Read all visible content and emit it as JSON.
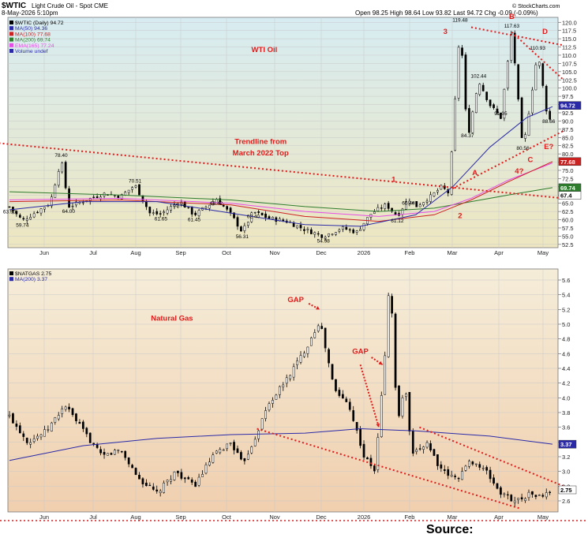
{
  "header": {
    "symbol": "$WTIC",
    "name": "Light Crude Oil - Spot",
    "exchange": "CME",
    "datetime": "8-May-2026 5:10pm",
    "ohlc": "Open 98.25  High 98.64  Low 93.82  Last 94.72  Chg -0.09 (-0.09%)",
    "credit": "© StockCharts.com"
  },
  "colors": {
    "oil_bg_top": "#d7ecf2",
    "oil_bg_bottom": "#ede6c0",
    "gas_bg_top": "#f5edd9",
    "gas_bg_bottom": "#f0cfae",
    "annotation": "#e01b1b",
    "ma50": "#2a2aa8",
    "ma100": "#cc2222",
    "ma200": "#2e7d2e",
    "ema165": "#e64de6"
  },
  "chart_data": [
    {
      "type": "line",
      "title": "WTI Oil",
      "legend": [
        "$WTIC (Daily) 94.72",
        "MA(50) 94.36",
        "MA(100) 77.68",
        "MA(200) 69.74",
        "EMA(165) 77.24",
        "Volume undef"
      ],
      "months": [
        "Jun",
        "Jul",
        "Aug",
        "Sep",
        "Oct",
        "Nov",
        "Dec",
        "2026",
        "Feb",
        "Mar",
        "Apr",
        "May"
      ],
      "ylim": [
        52.5,
        120
      ],
      "yticks": [
        "52.5",
        "55.0",
        "57.5",
        "60.0",
        "62.5",
        "65.0",
        "67.5",
        "70.0",
        "72.5",
        "75.0",
        "77.5",
        "80.0",
        "82.5",
        "85.0",
        "87.5",
        "90.0",
        "92.5",
        "95.0",
        "97.5",
        "100.0",
        "102.5",
        "105.0",
        "107.5",
        "110.0",
        "112.5",
        "115.0",
        "117.5",
        "120.0"
      ],
      "price_path": [
        {
          "t": 0,
          "v": 63.9
        },
        {
          "t": 0.35,
          "v": 59.74
        },
        {
          "t": 1.1,
          "v": 65
        },
        {
          "t": 1.4,
          "v": 78.4
        },
        {
          "t": 1.6,
          "v": 64
        },
        {
          "t": 2.2,
          "v": 66.5
        },
        {
          "t": 2.6,
          "v": 68
        },
        {
          "t": 3.0,
          "v": 67
        },
        {
          "t": 3.4,
          "v": 70.51
        },
        {
          "t": 3.8,
          "v": 62
        },
        {
          "t": 4.1,
          "v": 61.65
        },
        {
          "t": 4.6,
          "v": 65.76
        },
        {
          "t": 5.0,
          "v": 61.45
        },
        {
          "t": 5.4,
          "v": 64.5
        },
        {
          "t": 5.6,
          "v": 66.42
        },
        {
          "t": 6.0,
          "v": 61.5
        },
        {
          "t": 6.3,
          "v": 56.31
        },
        {
          "t": 6.6,
          "v": 62.4
        },
        {
          "t": 7.0,
          "v": 60.5
        },
        {
          "t": 7.5,
          "v": 59.5
        },
        {
          "t": 8.0,
          "v": 57
        },
        {
          "t": 8.5,
          "v": 54.98
        },
        {
          "t": 9.0,
          "v": 57.5
        },
        {
          "t": 9.4,
          "v": 56.2
        },
        {
          "t": 9.8,
          "v": 62
        },
        {
          "t": 10.2,
          "v": 64.5
        },
        {
          "t": 10.5,
          "v": 61.12
        },
        {
          "t": 10.8,
          "v": 66.48
        },
        {
          "t": 11.0,
          "v": 64
        },
        {
          "t": 11.4,
          "v": 67
        },
        {
          "t": 11.7,
          "v": 70
        },
        {
          "t": 11.9,
          "v": 68
        },
        {
          "t": 12.2,
          "v": 119.48
        },
        {
          "t": 12.4,
          "v": 84.37
        },
        {
          "t": 12.7,
          "v": 102.44
        },
        {
          "t": 13.0,
          "v": 95
        },
        {
          "t": 13.3,
          "v": 91.05
        },
        {
          "t": 13.6,
          "v": 117.63
        },
        {
          "t": 13.9,
          "v": 80.56
        },
        {
          "t": 14.3,
          "v": 110.93
        },
        {
          "t": 14.6,
          "v": 88.66
        },
        {
          "t": 14.7,
          "v": 94.72
        }
      ],
      "ma50_path": [
        {
          "t": 0,
          "v": 63
        },
        {
          "t": 2,
          "v": 65.5
        },
        {
          "t": 4,
          "v": 65.5
        },
        {
          "t": 6,
          "v": 62
        },
        {
          "t": 8,
          "v": 58.5
        },
        {
          "t": 9.5,
          "v": 58
        },
        {
          "t": 11,
          "v": 61.5
        },
        {
          "t": 12,
          "v": 70
        },
        {
          "t": 13,
          "v": 82
        },
        {
          "t": 14,
          "v": 91
        },
        {
          "t": 14.7,
          "v": 94.36
        }
      ],
      "ma100_path": [
        {
          "t": 0,
          "v": 65.5
        },
        {
          "t": 3,
          "v": 66
        },
        {
          "t": 6,
          "v": 64.5
        },
        {
          "t": 8,
          "v": 61
        },
        {
          "t": 10,
          "v": 59.5
        },
        {
          "t": 11.5,
          "v": 61.5
        },
        {
          "t": 12.5,
          "v": 66
        },
        {
          "t": 13.5,
          "v": 71.5
        },
        {
          "t": 14.7,
          "v": 77.68
        }
      ],
      "ema165_path": [
        {
          "t": 0,
          "v": 66
        },
        {
          "t": 3,
          "v": 66.5
        },
        {
          "t": 6,
          "v": 65
        },
        {
          "t": 8,
          "v": 62.5
        },
        {
          "t": 10,
          "v": 61
        },
        {
          "t": 11.5,
          "v": 62.5
        },
        {
          "t": 12.5,
          "v": 66.5
        },
        {
          "t": 13.5,
          "v": 72
        },
        {
          "t": 14.7,
          "v": 77.24
        }
      ],
      "ma200_path": [
        {
          "t": 0,
          "v": 68.5
        },
        {
          "t": 3,
          "v": 67.5
        },
        {
          "t": 6,
          "v": 66
        },
        {
          "t": 8,
          "v": 64
        },
        {
          "t": 10,
          "v": 62.5
        },
        {
          "t": 11.5,
          "v": 63.5
        },
        {
          "t": 12.5,
          "v": 65.5
        },
        {
          "t": 13.5,
          "v": 67.5
        },
        {
          "t": 14.7,
          "v": 69.74
        }
      ],
      "price_labels": [
        {
          "text": "63.90",
          "t": 0,
          "v": 63.9
        },
        {
          "text": "59.74",
          "t": 0.35,
          "v": 59.74
        },
        {
          "text": "78.40",
          "t": 1.4,
          "v": 78.4
        },
        {
          "text": "64.00",
          "t": 1.6,
          "v": 64
        },
        {
          "text": "70.51",
          "t": 3.4,
          "v": 70.51
        },
        {
          "text": "61.65",
          "t": 4.1,
          "v": 61.65
        },
        {
          "text": "65.76",
          "t": 4.6,
          "v": 65.76
        },
        {
          "text": "61.45",
          "t": 5.0,
          "v": 61.45
        },
        {
          "text": "66.42",
          "t": 5.6,
          "v": 66.42
        },
        {
          "text": "62.40",
          "t": 6.6,
          "v": 62.4
        },
        {
          "text": "56.31",
          "t": 6.3,
          "v": 56.31
        },
        {
          "text": "54.98",
          "t": 8.5,
          "v": 54.98
        },
        {
          "text": "66.48",
          "t": 10.8,
          "v": 66.48
        },
        {
          "text": "61.12",
          "t": 10.5,
          "v": 61.12
        },
        {
          "text": "119.48",
          "t": 12.2,
          "v": 119.48
        },
        {
          "text": "102.44",
          "t": 12.7,
          "v": 102.44
        },
        {
          "text": "84.37",
          "t": 12.4,
          "v": 84.37
        },
        {
          "text": "91.05",
          "t": 13.3,
          "v": 91.05
        },
        {
          "text": "117.63",
          "t": 13.6,
          "v": 117.63
        },
        {
          "text": "80.56",
          "t": 13.9,
          "v": 80.56
        },
        {
          "text": "110.93",
          "t": 14.3,
          "v": 110.93
        },
        {
          "text": "88.66",
          "t": 14.6,
          "v": 88.66
        }
      ],
      "axis_badges": [
        {
          "text": "94.72",
          "v": 94.72
        },
        {
          "text": "77.68",
          "v": 77.68
        },
        {
          "text": "69.74",
          "v": 69.74
        },
        {
          "text": "67.4",
          "v": 67.4
        }
      ],
      "trendlines": [
        {
          "from": {
            "t": -0.5,
            "v": 83.5
          },
          "to": {
            "t": 15.0,
            "v": 66.5
          }
        },
        {
          "from": {
            "t": 12.0,
            "v": 69.5
          },
          "to": {
            "t": 15.0,
            "v": 87.0
          }
        },
        {
          "from": {
            "t": 12.5,
            "v": 118.5
          },
          "to": {
            "t": 15.0,
            "v": 113.0
          }
        },
        {
          "from": {
            "t": 13.6,
            "v": 117.0
          },
          "to": {
            "t": 15.0,
            "v": 102.5
          }
        }
      ],
      "annotations": [
        {
          "text": "WTI Oil",
          "t": 6.9,
          "v": 111
        },
        {
          "text": "Trendline from",
          "t": 6.8,
          "v": 83
        },
        {
          "text": "March 2022 Top",
          "t": 6.8,
          "v": 79.5
        },
        {
          "text": "1",
          "t": 10.4,
          "v": 71.5
        },
        {
          "text": "2",
          "t": 12.2,
          "v": 60.5
        },
        {
          "text": "3",
          "t": 11.8,
          "v": 116.5
        },
        {
          "text": "A",
          "t": 12.6,
          "v": 73.5
        },
        {
          "text": "B",
          "t": 13.6,
          "v": 121
        },
        {
          "text": "C",
          "t": 14.1,
          "v": 77.5
        },
        {
          "text": "D",
          "t": 14.5,
          "v": 116.5
        },
        {
          "text": "E?",
          "t": 14.6,
          "v": 81.5
        },
        {
          "text": "4?",
          "t": 13.8,
          "v": 74
        }
      ]
    },
    {
      "type": "line",
      "title": "Natural Gas",
      "legend": [
        "$NATGAS 2.75",
        "MA(200) 3.37"
      ],
      "months": [
        "Jun",
        "Jul",
        "Aug",
        "Sep",
        "Oct",
        "Nov",
        "Dec",
        "2026",
        "Feb",
        "Mar",
        "Apr",
        "May"
      ],
      "ylim": [
        2.4,
        5.8
      ],
      "yticks": [
        "2.6",
        "2.8",
        "3.0",
        "3.2",
        "3.4",
        "3.6",
        "3.8",
        "4.0",
        "4.2",
        "4.4",
        "4.6",
        "4.8",
        "5.0",
        "5.2",
        "5.4",
        "5.6"
      ],
      "price_path": [
        {
          "t": 0,
          "v": 3.75
        },
        {
          "t": 0.5,
          "v": 3.4
        },
        {
          "t": 1.0,
          "v": 3.55
        },
        {
          "t": 1.5,
          "v": 3.9
        },
        {
          "t": 2.0,
          "v": 3.55
        },
        {
          "t": 2.5,
          "v": 3.2
        },
        {
          "t": 3.0,
          "v": 3.3
        },
        {
          "t": 3.5,
          "v": 2.9
        },
        {
          "t": 4.0,
          "v": 2.7
        },
        {
          "t": 4.5,
          "v": 3.0
        },
        {
          "t": 5.0,
          "v": 2.8
        },
        {
          "t": 5.5,
          "v": 3.2
        },
        {
          "t": 6.0,
          "v": 3.4
        },
        {
          "t": 6.3,
          "v": 3.1
        },
        {
          "t": 6.6,
          "v": 3.4
        },
        {
          "t": 7.0,
          "v": 3.9
        },
        {
          "t": 7.5,
          "v": 4.25
        },
        {
          "t": 8.0,
          "v": 4.65
        },
        {
          "t": 8.4,
          "v": 5.05
        },
        {
          "t": 8.5,
          "v": 4.8
        },
        {
          "t": 8.8,
          "v": 4.1
        },
        {
          "t": 9.2,
          "v": 3.9
        },
        {
          "t": 9.6,
          "v": 3.2
        },
        {
          "t": 9.9,
          "v": 3.0
        },
        {
          "t": 10.2,
          "v": 4.8
        },
        {
          "t": 10.3,
          "v": 5.75
        },
        {
          "t": 10.5,
          "v": 3.6
        },
        {
          "t": 10.7,
          "v": 4.2
        },
        {
          "t": 10.9,
          "v": 3.2
        },
        {
          "t": 11.3,
          "v": 3.4
        },
        {
          "t": 11.7,
          "v": 3.0
        },
        {
          "t": 12.1,
          "v": 2.9
        },
        {
          "t": 12.5,
          "v": 3.15
        },
        {
          "t": 12.9,
          "v": 3.0
        },
        {
          "t": 13.3,
          "v": 2.7
        },
        {
          "t": 13.7,
          "v": 2.6
        },
        {
          "t": 14.1,
          "v": 2.7
        },
        {
          "t": 14.4,
          "v": 2.65
        },
        {
          "t": 14.7,
          "v": 2.75
        }
      ],
      "ma200_path": [
        {
          "t": 0,
          "v": 3.15
        },
        {
          "t": 2,
          "v": 3.35
        },
        {
          "t": 4,
          "v": 3.45
        },
        {
          "t": 6,
          "v": 3.5
        },
        {
          "t": 8,
          "v": 3.52
        },
        {
          "t": 9.5,
          "v": 3.58
        },
        {
          "t": 11,
          "v": 3.55
        },
        {
          "t": 13,
          "v": 3.48
        },
        {
          "t": 14.7,
          "v": 3.37
        }
      ],
      "axis_badges": [
        {
          "text": "3.37",
          "v": 3.37
        },
        {
          "text": "2.75",
          "v": 2.75
        }
      ],
      "trendlines": [
        {
          "from": {
            "t": 6.7,
            "v": 3.58
          },
          "to": {
            "t": 13.8,
            "v": 2.5
          }
        },
        {
          "from": {
            "t": 11.1,
            "v": 3.6
          },
          "to": {
            "t": 15.0,
            "v": 2.8
          }
        }
      ],
      "arrows": [
        {
          "from": {
            "t": 8.1,
            "v": 5.28
          },
          "to": {
            "t": 8.4,
            "v": 5.2
          }
        },
        {
          "from": {
            "t": 9.8,
            "v": 4.55
          },
          "to": {
            "t": 10.1,
            "v": 4.45
          }
        },
        {
          "from": {
            "t": 9.5,
            "v": 4.45
          },
          "to": {
            "t": 10.0,
            "v": 3.6
          }
        }
      ],
      "annotations": [
        {
          "text": "GAP",
          "t": 7.75,
          "v": 5.3
        },
        {
          "text": "GAP",
          "t": 9.5,
          "v": 4.6
        },
        {
          "text": "Natural Gas",
          "t": 4.4,
          "v": 5.05
        }
      ]
    }
  ],
  "footer": {
    "source_label": "Source:"
  }
}
